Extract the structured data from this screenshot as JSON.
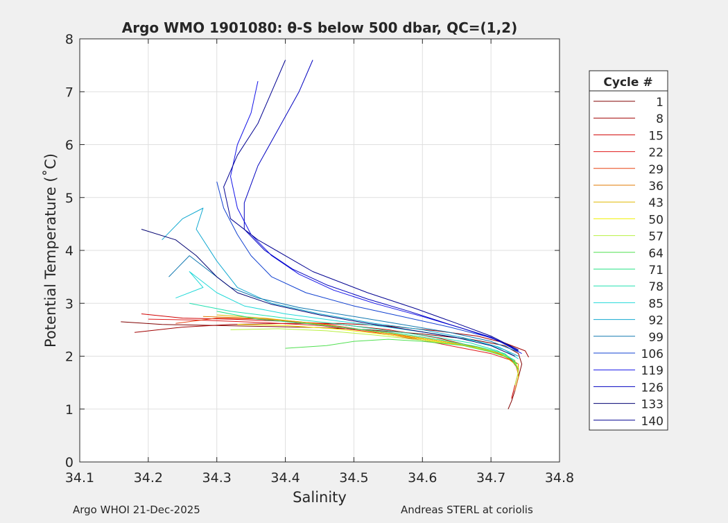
{
  "chart_data": {
    "type": "line",
    "title": "Argo WMO 1901080: θ-S below 500 dbar,  QC=(1,2)",
    "xlabel": "Salinity",
    "ylabel": "Potential Temperature (˚C)",
    "xlim": [
      34.1,
      34.8
    ],
    "ylim": [
      0,
      8
    ],
    "xticks": [
      34.1,
      34.2,
      34.3,
      34.4,
      34.5,
      34.6,
      34.7,
      34.8
    ],
    "yticks": [
      0,
      1,
      2,
      3,
      4,
      5,
      6,
      7,
      8
    ],
    "xtick_labels": [
      "34.1",
      "34.2",
      "34.3",
      "34.4",
      "34.5",
      "34.6",
      "34.7",
      "34.8"
    ],
    "ytick_labels": [
      "0",
      "1",
      "2",
      "3",
      "4",
      "5",
      "6",
      "7",
      "8"
    ],
    "grid": true,
    "legend": {
      "title": "Cycle #",
      "placement": "outside-right",
      "entries": [
        {
          "label": "1",
          "color": "#800000"
        },
        {
          "label": "8",
          "color": "#a00000"
        },
        {
          "label": "15",
          "color": "#d00000"
        },
        {
          "label": "22",
          "color": "#e01818"
        },
        {
          "label": "29",
          "color": "#e84010"
        },
        {
          "label": "36",
          "color": "#e07800"
        },
        {
          "label": "43",
          "color": "#e0b800"
        },
        {
          "label": "50",
          "color": "#f0f000"
        },
        {
          "label": "57",
          "color": "#b8f040"
        },
        {
          "label": "64",
          "color": "#50e050"
        },
        {
          "label": "71",
          "color": "#20e080"
        },
        {
          "label": "78",
          "color": "#20e0b0"
        },
        {
          "label": "85",
          "color": "#20d8d8"
        },
        {
          "label": "92",
          "color": "#10a8d0"
        },
        {
          "label": "99",
          "color": "#1078b0"
        },
        {
          "label": "106",
          "color": "#1040d0"
        },
        {
          "label": "119",
          "color": "#1010e8"
        },
        {
          "label": "126",
          "color": "#0000c0"
        },
        {
          "label": "133",
          "color": "#000070"
        },
        {
          "label": "140",
          "color": "#000090"
        }
      ]
    },
    "series": [
      {
        "name": "1",
        "color": "#800000",
        "points": [
          [
            34.16,
            2.65
          ],
          [
            34.22,
            2.6
          ],
          [
            34.3,
            2.58
          ],
          [
            34.38,
            2.56
          ],
          [
            34.45,
            2.54
          ],
          [
            34.52,
            2.5
          ],
          [
            34.6,
            2.42
          ],
          [
            34.67,
            2.32
          ],
          [
            34.72,
            2.2
          ],
          [
            34.74,
            2.05
          ],
          [
            34.745,
            1.85
          ],
          [
            34.74,
            1.6
          ],
          [
            34.735,
            1.35
          ],
          [
            34.73,
            1.15
          ],
          [
            34.725,
            1.0
          ]
        ]
      },
      {
        "name": "8",
        "color": "#a00000",
        "points": [
          [
            34.18,
            2.45
          ],
          [
            34.25,
            2.55
          ],
          [
            34.32,
            2.6
          ],
          [
            34.4,
            2.62
          ],
          [
            34.48,
            2.62
          ],
          [
            34.55,
            2.57
          ],
          [
            34.62,
            2.48
          ],
          [
            34.68,
            2.38
          ],
          [
            34.72,
            2.25
          ],
          [
            34.75,
            2.1
          ],
          [
            34.755,
            1.98
          ]
        ]
      },
      {
        "name": "15",
        "color": "#d00000",
        "points": [
          [
            34.19,
            2.8
          ],
          [
            34.25,
            2.72
          ],
          [
            34.32,
            2.7
          ],
          [
            34.4,
            2.66
          ],
          [
            34.48,
            2.6
          ],
          [
            34.55,
            2.5
          ],
          [
            34.62,
            2.35
          ],
          [
            34.67,
            2.2
          ],
          [
            34.71,
            2.05
          ],
          [
            34.735,
            1.9
          ],
          [
            34.74,
            1.7
          ],
          [
            34.735,
            1.45
          ],
          [
            34.73,
            1.2
          ]
        ]
      },
      {
        "name": "22",
        "color": "#e01818",
        "points": [
          [
            34.2,
            2.7
          ],
          [
            34.28,
            2.68
          ],
          [
            34.36,
            2.64
          ],
          [
            34.45,
            2.58
          ],
          [
            34.53,
            2.45
          ],
          [
            34.6,
            2.3
          ],
          [
            34.66,
            2.15
          ],
          [
            34.7,
            2.05
          ],
          [
            34.73,
            1.92
          ],
          [
            34.74,
            1.75
          ]
        ]
      },
      {
        "name": "29",
        "color": "#e84010",
        "points": [
          [
            34.24,
            2.62
          ],
          [
            34.3,
            2.72
          ],
          [
            34.38,
            2.7
          ],
          [
            34.46,
            2.6
          ],
          [
            34.54,
            2.45
          ],
          [
            34.61,
            2.3
          ],
          [
            34.67,
            2.18
          ],
          [
            34.71,
            2.06
          ],
          [
            34.735,
            1.9
          ],
          [
            34.74,
            1.65
          ]
        ]
      },
      {
        "name": "36",
        "color": "#e07800",
        "points": [
          [
            34.28,
            2.75
          ],
          [
            34.35,
            2.72
          ],
          [
            34.42,
            2.65
          ],
          [
            34.5,
            2.52
          ],
          [
            34.57,
            2.4
          ],
          [
            34.63,
            2.28
          ],
          [
            34.68,
            2.16
          ],
          [
            34.72,
            2.02
          ],
          [
            34.74,
            1.85
          ],
          [
            34.74,
            1.6
          ],
          [
            34.735,
            1.35
          ]
        ]
      },
      {
        "name": "43",
        "color": "#e0b800",
        "points": [
          [
            34.3,
            2.78
          ],
          [
            34.37,
            2.72
          ],
          [
            34.44,
            2.62
          ],
          [
            34.51,
            2.5
          ],
          [
            34.58,
            2.38
          ],
          [
            34.64,
            2.26
          ],
          [
            34.69,
            2.14
          ],
          [
            34.72,
            2.0
          ],
          [
            34.738,
            1.82
          ],
          [
            34.74,
            1.6
          ]
        ]
      },
      {
        "name": "50",
        "color": "#f0f000",
        "points": [
          [
            34.33,
            2.6
          ],
          [
            34.4,
            2.58
          ],
          [
            34.47,
            2.52
          ],
          [
            34.54,
            2.42
          ],
          [
            34.6,
            2.32
          ],
          [
            34.66,
            2.2
          ],
          [
            34.7,
            2.08
          ],
          [
            34.73,
            1.95
          ],
          [
            34.74,
            1.78
          ]
        ]
      },
      {
        "name": "57",
        "color": "#b8f040",
        "points": [
          [
            34.32,
            2.5
          ],
          [
            34.39,
            2.52
          ],
          [
            34.46,
            2.48
          ],
          [
            34.53,
            2.4
          ],
          [
            34.6,
            2.3
          ],
          [
            34.66,
            2.2
          ],
          [
            34.71,
            2.08
          ],
          [
            34.735,
            1.92
          ],
          [
            34.74,
            1.7
          ],
          [
            34.735,
            1.45
          ]
        ]
      },
      {
        "name": "64",
        "color": "#50e050",
        "points": [
          [
            34.4,
            2.15
          ],
          [
            34.46,
            2.2
          ],
          [
            34.5,
            2.28
          ],
          [
            34.55,
            2.32
          ],
          [
            34.6,
            2.28
          ],
          [
            34.66,
            2.2
          ],
          [
            34.7,
            2.08
          ],
          [
            34.73,
            1.95
          ],
          [
            34.74,
            1.75
          ]
        ]
      },
      {
        "name": "71",
        "color": "#20e080",
        "points": [
          [
            34.3,
            2.85
          ],
          [
            34.36,
            2.7
          ],
          [
            34.43,
            2.62
          ],
          [
            34.5,
            2.52
          ],
          [
            34.57,
            2.42
          ],
          [
            34.63,
            2.3
          ],
          [
            34.68,
            2.18
          ],
          [
            34.72,
            2.05
          ],
          [
            34.738,
            1.85
          ]
        ]
      },
      {
        "name": "78",
        "color": "#20e0b0",
        "points": [
          [
            34.26,
            3.0
          ],
          [
            34.32,
            2.85
          ],
          [
            34.4,
            2.72
          ],
          [
            34.47,
            2.62
          ],
          [
            34.54,
            2.5
          ],
          [
            34.61,
            2.38
          ],
          [
            34.67,
            2.25
          ],
          [
            34.71,
            2.1
          ],
          [
            34.735,
            1.92
          ]
        ]
      },
      {
        "name": "85",
        "color": "#20d8d8",
        "points": [
          [
            34.24,
            3.1
          ],
          [
            34.28,
            3.3
          ],
          [
            34.26,
            3.6
          ],
          [
            34.3,
            3.2
          ],
          [
            34.34,
            2.95
          ],
          [
            34.4,
            2.8
          ],
          [
            34.48,
            2.66
          ],
          [
            34.55,
            2.55
          ],
          [
            34.62,
            2.42
          ],
          [
            34.68,
            2.28
          ],
          [
            34.72,
            2.12
          ],
          [
            34.74,
            1.95
          ]
        ]
      },
      {
        "name": "92",
        "color": "#10a8d0",
        "points": [
          [
            34.22,
            4.2
          ],
          [
            34.25,
            4.6
          ],
          [
            34.28,
            4.8
          ],
          [
            34.27,
            4.4
          ],
          [
            34.3,
            3.8
          ],
          [
            34.33,
            3.3
          ],
          [
            34.38,
            3.0
          ],
          [
            34.45,
            2.8
          ],
          [
            34.53,
            2.62
          ],
          [
            34.6,
            2.5
          ],
          [
            34.66,
            2.35
          ],
          [
            34.71,
            2.18
          ],
          [
            34.74,
            2.0
          ]
        ]
      },
      {
        "name": "99",
        "color": "#1078b0",
        "points": [
          [
            34.23,
            3.5
          ],
          [
            34.26,
            3.9
          ],
          [
            34.29,
            3.6
          ],
          [
            34.32,
            3.3
          ],
          [
            34.36,
            3.1
          ],
          [
            34.42,
            2.92
          ],
          [
            34.5,
            2.75
          ],
          [
            34.57,
            2.6
          ],
          [
            34.64,
            2.45
          ],
          [
            34.7,
            2.28
          ],
          [
            34.74,
            2.08
          ]
        ]
      },
      {
        "name": "106",
        "color": "#1040d0",
        "points": [
          [
            34.3,
            5.3
          ],
          [
            34.31,
            4.8
          ],
          [
            34.33,
            4.3
          ],
          [
            34.35,
            3.9
          ],
          [
            34.38,
            3.5
          ],
          [
            34.43,
            3.2
          ],
          [
            34.5,
            2.95
          ],
          [
            34.57,
            2.75
          ],
          [
            34.64,
            2.55
          ],
          [
            34.7,
            2.35
          ],
          [
            34.74,
            2.12
          ]
        ]
      },
      {
        "name": "119",
        "color": "#1010e8",
        "points": [
          [
            34.36,
            7.2
          ],
          [
            34.35,
            6.6
          ],
          [
            34.33,
            6.0
          ],
          [
            34.32,
            5.4
          ],
          [
            34.33,
            4.8
          ],
          [
            34.35,
            4.3
          ],
          [
            34.38,
            3.9
          ],
          [
            34.42,
            3.55
          ],
          [
            34.47,
            3.25
          ],
          [
            34.53,
            3.0
          ],
          [
            34.6,
            2.75
          ],
          [
            34.66,
            2.52
          ],
          [
            34.71,
            2.3
          ],
          [
            34.745,
            2.05
          ]
        ]
      },
      {
        "name": "126",
        "color": "#0000c0",
        "points": [
          [
            34.44,
            7.6
          ],
          [
            34.42,
            7.0
          ],
          [
            34.39,
            6.3
          ],
          [
            34.36,
            5.6
          ],
          [
            34.34,
            4.9
          ],
          [
            34.34,
            4.4
          ],
          [
            34.37,
            4.0
          ],
          [
            34.41,
            3.65
          ],
          [
            34.46,
            3.35
          ],
          [
            34.52,
            3.08
          ],
          [
            34.58,
            2.85
          ],
          [
            34.64,
            2.6
          ],
          [
            34.7,
            2.36
          ],
          [
            34.74,
            2.1
          ]
        ]
      },
      {
        "name": "133",
        "color": "#000070",
        "points": [
          [
            34.19,
            4.4
          ],
          [
            34.24,
            4.2
          ],
          [
            34.27,
            3.9
          ],
          [
            34.3,
            3.5
          ],
          [
            34.33,
            3.2
          ],
          [
            34.38,
            2.98
          ],
          [
            34.45,
            2.78
          ],
          [
            34.52,
            2.62
          ],
          [
            34.59,
            2.48
          ],
          [
            34.65,
            2.35
          ],
          [
            34.7,
            2.2
          ],
          [
            34.735,
            2.0
          ]
        ]
      },
      {
        "name": "140",
        "color": "#000090",
        "points": [
          [
            34.4,
            7.6
          ],
          [
            34.38,
            7.0
          ],
          [
            34.36,
            6.4
          ],
          [
            34.33,
            5.8
          ],
          [
            34.31,
            5.2
          ],
          [
            34.32,
            4.6
          ],
          [
            34.36,
            4.2
          ],
          [
            34.44,
            3.6
          ],
          [
            34.52,
            3.2
          ],
          [
            34.59,
            2.9
          ],
          [
            34.65,
            2.62
          ],
          [
            34.7,
            2.38
          ],
          [
            34.74,
            2.12
          ]
        ]
      }
    ]
  },
  "footer": {
    "left": "Argo WHOI 21-Dec-2025",
    "right": "Andreas STERL at coriolis"
  }
}
